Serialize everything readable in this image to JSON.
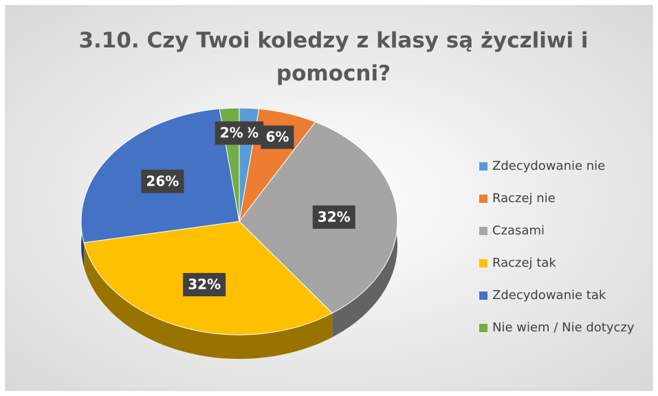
{
  "chart_data": {
    "type": "pie",
    "title": "3.10. Czy Twoi koledzy z klasy są życzliwi i pomocni?",
    "categories": [
      "Zdecydowanie nie",
      "Raczej nie",
      "Czasami",
      "Raczej tak",
      "Zdecydowanie tak",
      "Nie wiem / Nie dotyczy"
    ],
    "values": [
      2,
      6,
      32,
      32,
      26,
      2
    ],
    "value_labels": [
      "2%",
      "6%",
      "32%",
      "32%",
      "26%",
      "2%"
    ],
    "colors": [
      "#5b9bd5",
      "#ed7d31",
      "#a5a5a5",
      "#ffc000",
      "#4472c4",
      "#70ad47"
    ],
    "legend": "right"
  }
}
